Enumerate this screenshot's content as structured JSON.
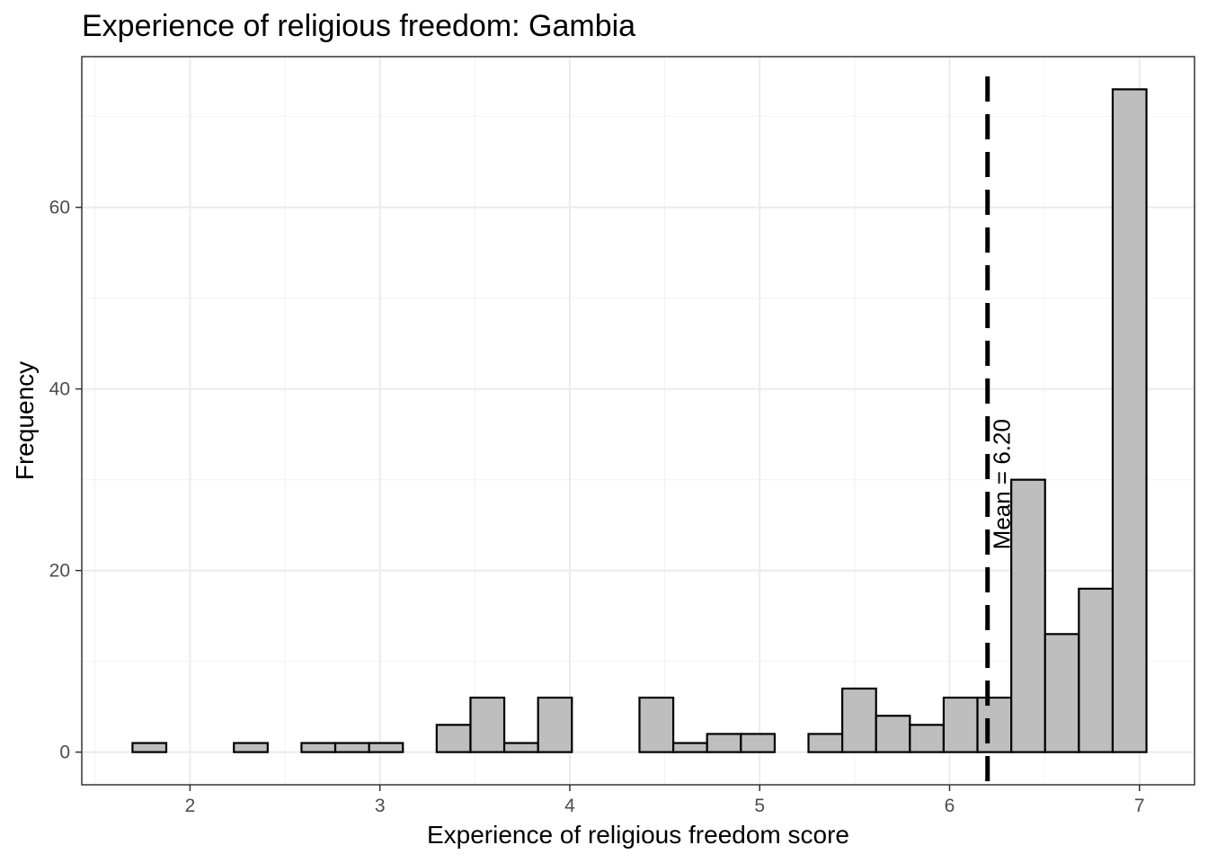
{
  "chart_data": {
    "type": "bar",
    "subtype": "histogram",
    "title": "Experience of religious freedom: Gambia",
    "xlabel": "Experience of religious freedom score",
    "ylabel": "Frequency",
    "xlim": [
      1.43,
      7.29
    ],
    "ylim": [
      -3.6,
      76.6
    ],
    "x_ticks": [
      2,
      3,
      4,
      5,
      6,
      7
    ],
    "y_ticks": [
      0,
      20,
      40,
      60
    ],
    "bin_width": 0.178,
    "bins": [
      {
        "x0": 1.697,
        "x1": 1.875,
        "count": 1
      },
      {
        "x0": 1.875,
        "x1": 2.053,
        "count": 0
      },
      {
        "x0": 2.053,
        "x1": 2.231,
        "count": 0
      },
      {
        "x0": 2.231,
        "x1": 2.409,
        "count": 1
      },
      {
        "x0": 2.409,
        "x1": 2.587,
        "count": 0
      },
      {
        "x0": 2.587,
        "x1": 2.765,
        "count": 1
      },
      {
        "x0": 2.765,
        "x1": 2.943,
        "count": 1
      },
      {
        "x0": 2.943,
        "x1": 3.121,
        "count": 1
      },
      {
        "x0": 3.121,
        "x1": 3.299,
        "count": 0
      },
      {
        "x0": 3.299,
        "x1": 3.477,
        "count": 3
      },
      {
        "x0": 3.477,
        "x1": 3.655,
        "count": 6
      },
      {
        "x0": 3.655,
        "x1": 3.833,
        "count": 1
      },
      {
        "x0": 3.833,
        "x1": 4.011,
        "count": 6
      },
      {
        "x0": 4.011,
        "x1": 4.189,
        "count": 0
      },
      {
        "x0": 4.189,
        "x1": 4.367,
        "count": 0
      },
      {
        "x0": 4.367,
        "x1": 4.545,
        "count": 6
      },
      {
        "x0": 4.545,
        "x1": 4.723,
        "count": 1
      },
      {
        "x0": 4.723,
        "x1": 4.901,
        "count": 2
      },
      {
        "x0": 4.901,
        "x1": 5.079,
        "count": 2
      },
      {
        "x0": 5.079,
        "x1": 5.257,
        "count": 0
      },
      {
        "x0": 5.257,
        "x1": 5.435,
        "count": 2
      },
      {
        "x0": 5.435,
        "x1": 5.613,
        "count": 7
      },
      {
        "x0": 5.613,
        "x1": 5.791,
        "count": 4
      },
      {
        "x0": 5.791,
        "x1": 5.969,
        "count": 3
      },
      {
        "x0": 5.969,
        "x1": 6.147,
        "count": 6
      },
      {
        "x0": 6.147,
        "x1": 6.325,
        "count": 6
      },
      {
        "x0": 6.325,
        "x1": 6.503,
        "count": 30
      },
      {
        "x0": 6.503,
        "x1": 6.681,
        "count": 13
      },
      {
        "x0": 6.681,
        "x1": 6.859,
        "count": 18
      },
      {
        "x0": 6.859,
        "x1": 7.037,
        "count": 73
      }
    ],
    "mean_line": {
      "x": 6.2,
      "label": "Mean = 6.20",
      "style": "dashed"
    },
    "bar_fill": "#bebebe",
    "bar_stroke": "#000000",
    "grid": true,
    "legend": "none"
  }
}
